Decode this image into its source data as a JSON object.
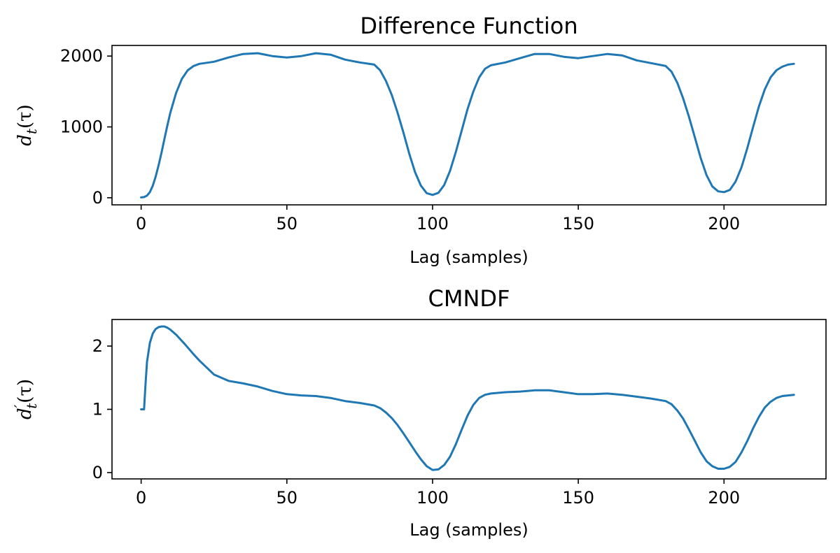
{
  "chart_data": [
    {
      "type": "line",
      "title": "Difference Function",
      "xlabel": "Lag (samples)",
      "ylabel": "d_t(τ)",
      "ylabel_parts": {
        "base": "d",
        "sub": "t",
        "sup": "",
        "arg": "(τ)"
      },
      "xlim": [
        -10,
        235
      ],
      "ylim": [
        -100,
        2150
      ],
      "xticks": [
        0,
        50,
        100,
        150,
        200
      ],
      "xtick_labels": [
        "0",
        "50",
        "100",
        "150",
        "200"
      ],
      "yticks": [
        0,
        1000,
        2000
      ],
      "ytick_labels": [
        "0",
        "1000",
        "2000"
      ],
      "grid": false,
      "series": [
        {
          "color": "#1f77b4",
          "x": [
            0,
            1,
            2,
            3,
            4,
            5,
            6,
            7,
            8,
            9,
            10,
            12,
            14,
            16,
            18,
            20,
            25,
            30,
            35,
            40,
            45,
            50,
            55,
            60,
            65,
            70,
            75,
            80,
            82,
            84,
            86,
            88,
            90,
            92,
            94,
            96,
            98,
            100,
            102,
            104,
            106,
            108,
            110,
            112,
            114,
            116,
            118,
            120,
            125,
            130,
            135,
            140,
            145,
            150,
            155,
            160,
            165,
            170,
            175,
            180,
            182,
            184,
            186,
            188,
            190,
            192,
            194,
            196,
            198,
            200,
            202,
            204,
            206,
            208,
            210,
            212,
            214,
            216,
            218,
            220,
            222,
            224
          ],
          "y": [
            5,
            10,
            30,
            80,
            170,
            300,
            460,
            640,
            830,
            1020,
            1200,
            1480,
            1680,
            1800,
            1860,
            1890,
            1920,
            1980,
            2030,
            2040,
            2000,
            1980,
            2000,
            2040,
            2020,
            1950,
            1910,
            1880,
            1800,
            1650,
            1450,
            1200,
            920,
            620,
            360,
            170,
            65,
            40,
            70,
            180,
            380,
            650,
            950,
            1250,
            1500,
            1700,
            1820,
            1870,
            1910,
            1970,
            2030,
            2030,
            1990,
            1970,
            2000,
            2030,
            2010,
            1940,
            1900,
            1860,
            1780,
            1620,
            1400,
            1140,
            850,
            560,
            320,
            160,
            90,
            80,
            110,
            230,
            430,
            700,
            1000,
            1290,
            1530,
            1700,
            1800,
            1850,
            1880,
            1890
          ]
        }
      ]
    },
    {
      "type": "line",
      "title": "CMNDF",
      "xlabel": "Lag (samples)",
      "ylabel": "d′_t(τ)",
      "ylabel_parts": {
        "base": "d",
        "sub": "t",
        "sup": "′",
        "arg": "(τ)"
      },
      "xlim": [
        -10,
        235
      ],
      "ylim": [
        -0.1,
        2.42
      ],
      "xticks": [
        0,
        50,
        100,
        150,
        200
      ],
      "xtick_labels": [
        "0",
        "50",
        "100",
        "150",
        "200"
      ],
      "yticks": [
        0,
        1,
        2
      ],
      "ytick_labels": [
        "0",
        "1",
        "2"
      ],
      "grid": false,
      "series": [
        {
          "color": "#1f77b4",
          "x": [
            0,
            1,
            1.5,
            2,
            3,
            4,
            5,
            6,
            7,
            8,
            9,
            10,
            12,
            15,
            18,
            20,
            25,
            30,
            35,
            40,
            45,
            50,
            55,
            60,
            65,
            70,
            75,
            80,
            82,
            84,
            86,
            88,
            90,
            92,
            94,
            96,
            98,
            100,
            102,
            104,
            106,
            108,
            110,
            112,
            114,
            116,
            118,
            120,
            125,
            130,
            135,
            140,
            145,
            150,
            155,
            160,
            165,
            170,
            175,
            180,
            182,
            184,
            186,
            188,
            190,
            192,
            194,
            196,
            198,
            200,
            202,
            204,
            206,
            208,
            210,
            212,
            214,
            216,
            218,
            220,
            222,
            224
          ],
          "y": [
            1.0,
            1.0,
            1.4,
            1.75,
            2.05,
            2.2,
            2.27,
            2.3,
            2.31,
            2.31,
            2.29,
            2.26,
            2.18,
            2.03,
            1.87,
            1.77,
            1.55,
            1.45,
            1.41,
            1.36,
            1.29,
            1.24,
            1.22,
            1.21,
            1.18,
            1.13,
            1.1,
            1.06,
            1.02,
            0.95,
            0.86,
            0.75,
            0.62,
            0.48,
            0.34,
            0.21,
            0.1,
            0.04,
            0.05,
            0.12,
            0.25,
            0.45,
            0.68,
            0.9,
            1.07,
            1.18,
            1.23,
            1.25,
            1.27,
            1.28,
            1.3,
            1.3,
            1.27,
            1.24,
            1.24,
            1.25,
            1.23,
            1.2,
            1.17,
            1.13,
            1.08,
            0.98,
            0.85,
            0.68,
            0.5,
            0.32,
            0.18,
            0.1,
            0.06,
            0.06,
            0.09,
            0.17,
            0.32,
            0.5,
            0.7,
            0.88,
            1.03,
            1.12,
            1.18,
            1.21,
            1.22,
            1.23
          ]
        }
      ]
    }
  ]
}
